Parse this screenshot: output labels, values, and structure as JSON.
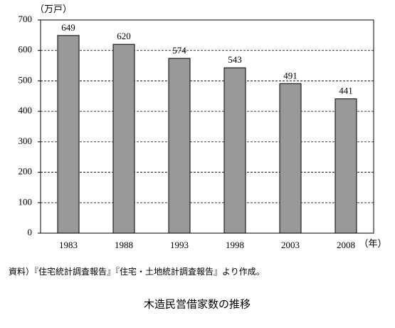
{
  "chart_data": {
    "type": "bar",
    "title": "木造民営借家数の推移",
    "y_unit": "（万戸）",
    "x_unit": "（年）",
    "note": "資料）『住宅統計調査報告』『住宅・土地統計調査報告』より作成。",
    "categories": [
      "1983",
      "1988",
      "1993",
      "1998",
      "2003",
      "2008"
    ],
    "values": [
      649,
      620,
      574,
      543,
      491,
      441
    ],
    "color": "#999999",
    "ylim": [
      0,
      700
    ],
    "yticks": [
      0,
      100,
      200,
      300,
      400,
      500,
      600,
      700
    ],
    "grid": true
  }
}
